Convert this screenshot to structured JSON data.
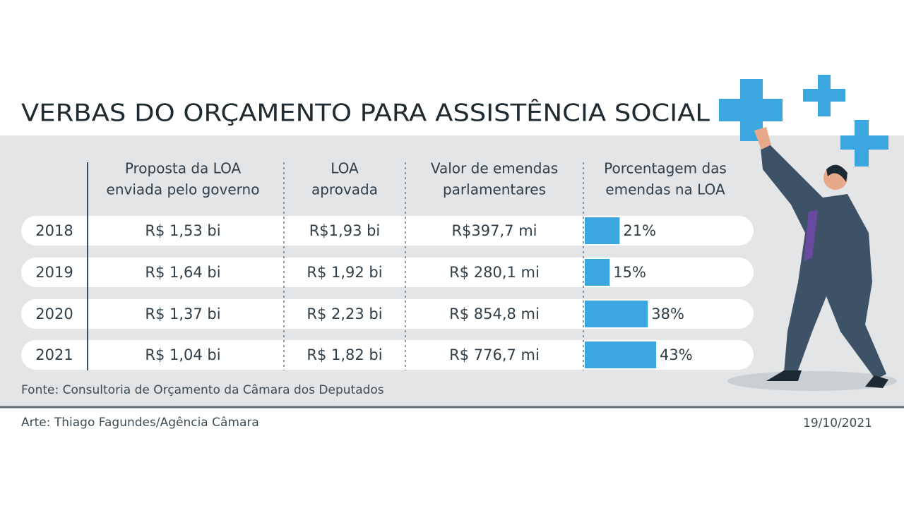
{
  "header": {
    "title": "VERBAS DO ORÇAMENTO PARA ASSISTÊNCIA SOCIAL"
  },
  "table": {
    "headers": [
      [
        "Proposta da LOA",
        "enviada pelo governo"
      ],
      [
        "LOA",
        "aprovada"
      ],
      [
        "Valor de emendas",
        "parlamentares"
      ],
      [
        "Porcentagem das",
        "emendas na LOA"
      ]
    ],
    "rows": [
      [
        "2018",
        "R$ 1,53 bi",
        "R$1,93 bi",
        "R$397,7 mi"
      ],
      [
        "2019",
        "R$ 1,64 bi",
        "R$ 1,92 bi",
        "R$ 280,1 mi"
      ],
      [
        "2020",
        "R$ 1,37 bi",
        "R$ 2,23 bi",
        "R$ 854,8 mi"
      ],
      [
        "2021",
        "R$ 1,04 bi",
        "R$ 1,82 bi",
        "R$ 776,7 mi"
      ]
    ],
    "percent": {
      "values": [
        21,
        15,
        38,
        43
      ],
      "value_labels": [
        "21%",
        "15%",
        "38%",
        "43%"
      ],
      "color": "#3ba6df"
    }
  },
  "footer": {
    "source": "Fonte: Consultoria de Orçamento da Câmara dos Deputados",
    "credit": "Arte: Thiago Fagundes/Agência Câmara",
    "date": "19/10/2021"
  }
}
